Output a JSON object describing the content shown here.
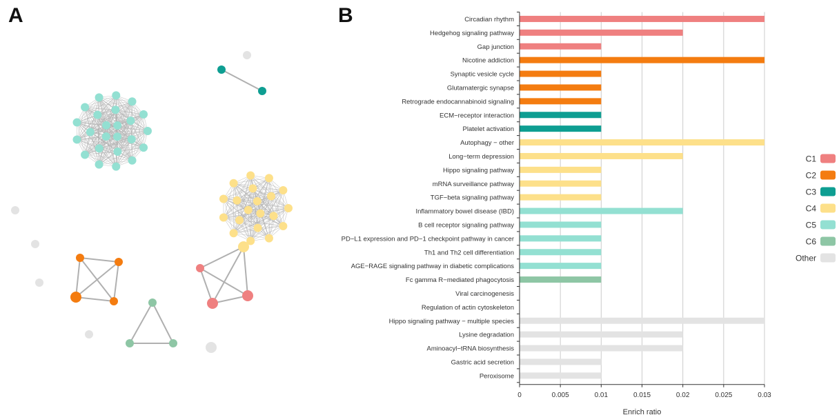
{
  "panels": {
    "a_label": "A",
    "b_label": "B"
  },
  "colors": {
    "C1": "#ef8080",
    "C2": "#f47c10",
    "C3": "#0e9e92",
    "C4": "#fde08a",
    "C5": "#93e0d2",
    "C6": "#8ec6a5",
    "Other": "#e3e3e3",
    "edge": "#b0b0b0",
    "grid": "#cccccc"
  },
  "network": {
    "clusters": [
      {
        "group": "C5",
        "nodes": 24,
        "style": "dense"
      },
      {
        "group": "C4",
        "nodes": 20,
        "style": "dense"
      },
      {
        "group": "C3",
        "nodes": 2,
        "style": "pair"
      },
      {
        "group": "C2",
        "nodes": 4,
        "style": "complete"
      },
      {
        "group": "C1",
        "nodes": 3,
        "style": "triangle-linked-C4"
      },
      {
        "group": "C6",
        "nodes": 3,
        "style": "triangle"
      },
      {
        "group": "Other",
        "nodes": 6,
        "style": "isolated"
      }
    ]
  },
  "chart_data": {
    "type": "bar",
    "orientation": "horizontal",
    "xlabel": "Enrich ratio",
    "xlim": [
      0,
      0.03
    ],
    "xticks": [
      "0",
      "0.005",
      "0.01",
      "0.015",
      "0.02",
      "0.025",
      "0.03"
    ],
    "grid": true,
    "legend_placement": "right",
    "legend": [
      "C1",
      "C2",
      "C3",
      "C4",
      "C5",
      "C6",
      "Other"
    ],
    "categories": [
      "Circadian rhythm",
      "Hedgehog signaling pathway",
      "Gap junction",
      "Nicotine addiction",
      "Synaptic vesicle cycle",
      "Glutamatergic synapse",
      "Retrograde endocannabinoid signaling",
      "ECM−receptor interaction",
      "Platelet activation",
      "Autophagy − other",
      "Long−term depression",
      "Hippo signaling pathway",
      "mRNA surveillance pathway",
      "TGF−beta signaling pathway",
      "Inflammatory bowel disease (IBD)",
      "B cell receptor signaling pathway",
      "PD−L1 expression and PD−1 checkpoint pathway in cancer",
      "Th1 and Th2 cell differentiation",
      "AGE−RAGE signaling pathway in diabetic complications",
      "Fc gamma R−mediated phagocytosis",
      "Viral carcinogenesis",
      "Regulation of actin cytoskeleton",
      "Hippo signaling pathway − multiple species",
      "Lysine degradation",
      "Aminoacyl−tRNA biosynthesis",
      "Gastric acid secretion",
      "Peroxisome"
    ],
    "values": [
      0.03,
      0.02,
      0.01,
      0.03,
      0.01,
      0.01,
      0.01,
      0.01,
      0.01,
      0.03,
      0.02,
      0.01,
      0.01,
      0.01,
      0.02,
      0.01,
      0.01,
      0.01,
      0.01,
      0.01,
      0,
      0,
      0.03,
      0.02,
      0.02,
      0.01,
      0.01
    ],
    "groups": [
      "C1",
      "C1",
      "C1",
      "C2",
      "C2",
      "C2",
      "C2",
      "C3",
      "C3",
      "C4",
      "C4",
      "C4",
      "C4",
      "C4",
      "C5",
      "C5",
      "C5",
      "C5",
      "C5",
      "C6",
      "Other",
      "Other",
      "Other",
      "Other",
      "Other",
      "Other",
      "Other"
    ]
  }
}
